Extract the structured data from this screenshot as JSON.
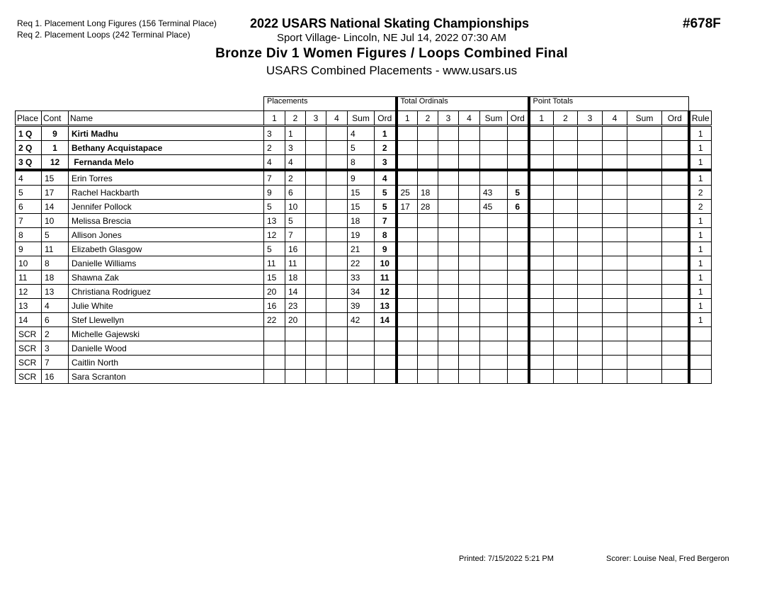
{
  "requirements": [
    "Req  1.  Placement Long Figures (156 Terminal Place)",
    "Req  2.  Placement Loops (242 Terminal Place)"
  ],
  "title": "2022 USARS National Skating Championships",
  "venue": "Sport Village- Lincoln, NE  Jul 14, 2022  07:30 AM",
  "event": "Bronze Div 1 Women Figures / Loops Combined Final",
  "subtitle": "USARS Combined Placements - www.usars.us",
  "event_code": "#678F",
  "groups": {
    "placements": "Placements",
    "total_ordinals": "Total Ordinals",
    "point_totals": "Point Totals"
  },
  "columns": [
    "Place",
    "Cont",
    "Name",
    "1",
    "2",
    "3",
    "4",
    "Sum",
    "Ord",
    "1",
    "2",
    "3",
    "4",
    "Sum",
    "Ord",
    "1",
    "2",
    "3",
    "4",
    "Sum",
    "Ord",
    "Rule"
  ],
  "rows": [
    {
      "place": "1 Q",
      "cont": "9",
      "name": "Kirti Madhu",
      "p": [
        "3",
        "1",
        "",
        "",
        "4",
        "1"
      ],
      "t": [
        "",
        "",
        "",
        "",
        "",
        ""
      ],
      "rule": "1",
      "bold": true
    },
    {
      "place": "2 Q",
      "cont": "1",
      "name": "Bethany Acquistapace",
      "p": [
        "2",
        "3",
        "",
        "",
        "5",
        "2"
      ],
      "t": [
        "",
        "",
        "",
        "",
        "",
        ""
      ],
      "rule": "1",
      "bold": true
    },
    {
      "place": "3 Q",
      "cont": "12",
      "name": " Fernanda Melo",
      "p": [
        "4",
        "4",
        "",
        "",
        "8",
        "3"
      ],
      "t": [
        "",
        "",
        "",
        "",
        "",
        ""
      ],
      "rule": "1",
      "bold": true
    },
    {
      "place": "4",
      "cont": "15",
      "name": "Erin Torres",
      "p": [
        "7",
        "2",
        "",
        "",
        "9",
        "4"
      ],
      "t": [
        "",
        "",
        "",
        "",
        "",
        ""
      ],
      "rule": "1"
    },
    {
      "place": "5",
      "cont": "17",
      "name": "Rachel Hackbarth",
      "p": [
        "9",
        "6",
        "",
        "",
        "15",
        "5"
      ],
      "t": [
        "25",
        "18",
        "",
        "",
        "43",
        "5"
      ],
      "rule": "2"
    },
    {
      "place": "6",
      "cont": "14",
      "name": "Jennifer Pollock",
      "p": [
        "5",
        "10",
        "",
        "",
        "15",
        "5"
      ],
      "t": [
        "17",
        "28",
        "",
        "",
        "45",
        "6"
      ],
      "rule": "2"
    },
    {
      "place": "7",
      "cont": "10",
      "name": "Melissa Brescia",
      "p": [
        "13",
        "5",
        "",
        "",
        "18",
        "7"
      ],
      "t": [
        "",
        "",
        "",
        "",
        "",
        ""
      ],
      "rule": "1"
    },
    {
      "place": "8",
      "cont": "5",
      "name": "Allison Jones",
      "p": [
        "12",
        "7",
        "",
        "",
        "19",
        "8"
      ],
      "t": [
        "",
        "",
        "",
        "",
        "",
        ""
      ],
      "rule": "1"
    },
    {
      "place": "9",
      "cont": "11",
      "name": "Elizabeth Glasgow",
      "p": [
        "5",
        "16",
        "",
        "",
        "21",
        "9"
      ],
      "t": [
        "",
        "",
        "",
        "",
        "",
        ""
      ],
      "rule": "1"
    },
    {
      "place": "10",
      "cont": "8",
      "name": "Danielle Williams",
      "p": [
        "11",
        "11",
        "",
        "",
        "22",
        "10"
      ],
      "t": [
        "",
        "",
        "",
        "",
        "",
        ""
      ],
      "rule": "1"
    },
    {
      "place": "11",
      "cont": "18",
      "name": "Shawna Zak",
      "p": [
        "15",
        "18",
        "",
        "",
        "33",
        "11"
      ],
      "t": [
        "",
        "",
        "",
        "",
        "",
        ""
      ],
      "rule": "1"
    },
    {
      "place": "12",
      "cont": "13",
      "name": "Christiana Rodriguez",
      "p": [
        "20",
        "14",
        "",
        "",
        "34",
        "12"
      ],
      "t": [
        "",
        "",
        "",
        "",
        "",
        ""
      ],
      "rule": "1"
    },
    {
      "place": "13",
      "cont": "4",
      "name": "Julie White",
      "p": [
        "16",
        "23",
        "",
        "",
        "39",
        "13"
      ],
      "t": [
        "",
        "",
        "",
        "",
        "",
        ""
      ],
      "rule": "1"
    },
    {
      "place": "14",
      "cont": "6",
      "name": "Stef Llewellyn",
      "p": [
        "22",
        "20",
        "",
        "",
        "42",
        "14"
      ],
      "t": [
        "",
        "",
        "",
        "",
        "",
        ""
      ],
      "rule": "1"
    },
    {
      "place": "SCR",
      "cont": "2",
      "name": "Michelle Gajewski",
      "p": [
        "",
        "",
        "",
        "",
        "",
        ""
      ],
      "t": [
        "",
        "",
        "",
        "",
        "",
        ""
      ],
      "rule": ""
    },
    {
      "place": "SCR",
      "cont": "3",
      "name": "Danielle Wood",
      "p": [
        "",
        "",
        "",
        "",
        "",
        ""
      ],
      "t": [
        "",
        "",
        "",
        "",
        "",
        ""
      ],
      "rule": ""
    },
    {
      "place": "SCR",
      "cont": "7",
      "name": "Caitlin North",
      "p": [
        "",
        "",
        "",
        "",
        "",
        ""
      ],
      "t": [
        "",
        "",
        "",
        "",
        "",
        ""
      ],
      "rule": ""
    },
    {
      "place": "SCR",
      "cont": "16",
      "name": "Sara Scranton",
      "p": [
        "",
        "",
        "",
        "",
        "",
        ""
      ],
      "t": [
        "",
        "",
        "",
        "",
        "",
        ""
      ],
      "rule": ""
    }
  ],
  "footer": {
    "printed": "Printed:  7/15/2022  5:21 PM",
    "scorer": "Scorer:   Louise Neal, Fred Bergeron"
  }
}
